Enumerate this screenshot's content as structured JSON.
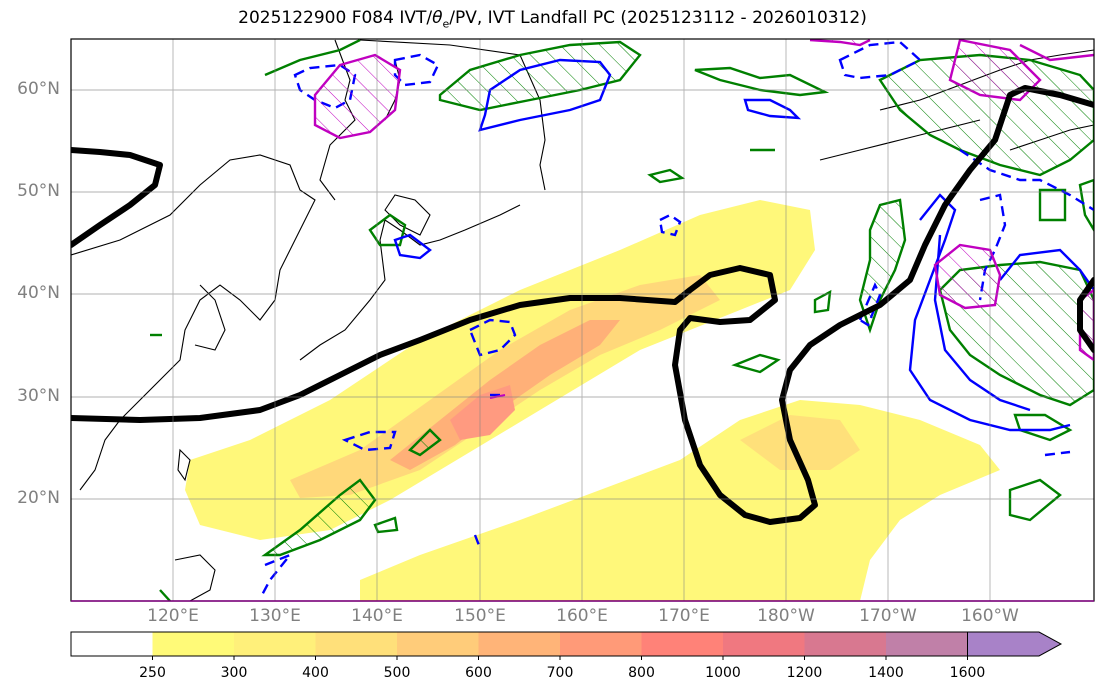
{
  "title": "2025122900 F084 IVT/θₑ/PV, IVT Landfall PC (2025123112 - 2026010312)",
  "title_parts": {
    "pre": "2025122900 F084 IVT/",
    "theta": "θ",
    "sub": "e",
    "post": "/PV, IVT Landfall PC (2025123112 - 2026010312)"
  },
  "lat_labels": [
    "60°N",
    "50°N",
    "40°N",
    "30°N",
    "20°N"
  ],
  "lon_labels": [
    "120°E",
    "130°E",
    "140°E",
    "150°E",
    "160°E",
    "170°E",
    "180°W",
    "170°W",
    "160°W"
  ],
  "colorbar": {
    "levels": [
      "250",
      "300",
      "400",
      "500",
      "600",
      "700",
      "800",
      "1000",
      "1200",
      "1400",
      "1600"
    ],
    "colors": [
      "#ffffff",
      "#fffa78",
      "#fff07a",
      "#ffe07a",
      "#ffcc7a",
      "#ffb478",
      "#ff9a78",
      "#ff8278",
      "#f07880",
      "#d87890",
      "#c080a8",
      "#a882c8"
    ]
  },
  "colors": {
    "ivt_low": "#fff87a",
    "ivt_mid": "#ffc87a",
    "ivt_high": "#ff9a80",
    "pv_positive": "#008000",
    "pv_negative": "#0000ff",
    "theta": "#c000c0",
    "landfall_line": "#000000"
  }
}
